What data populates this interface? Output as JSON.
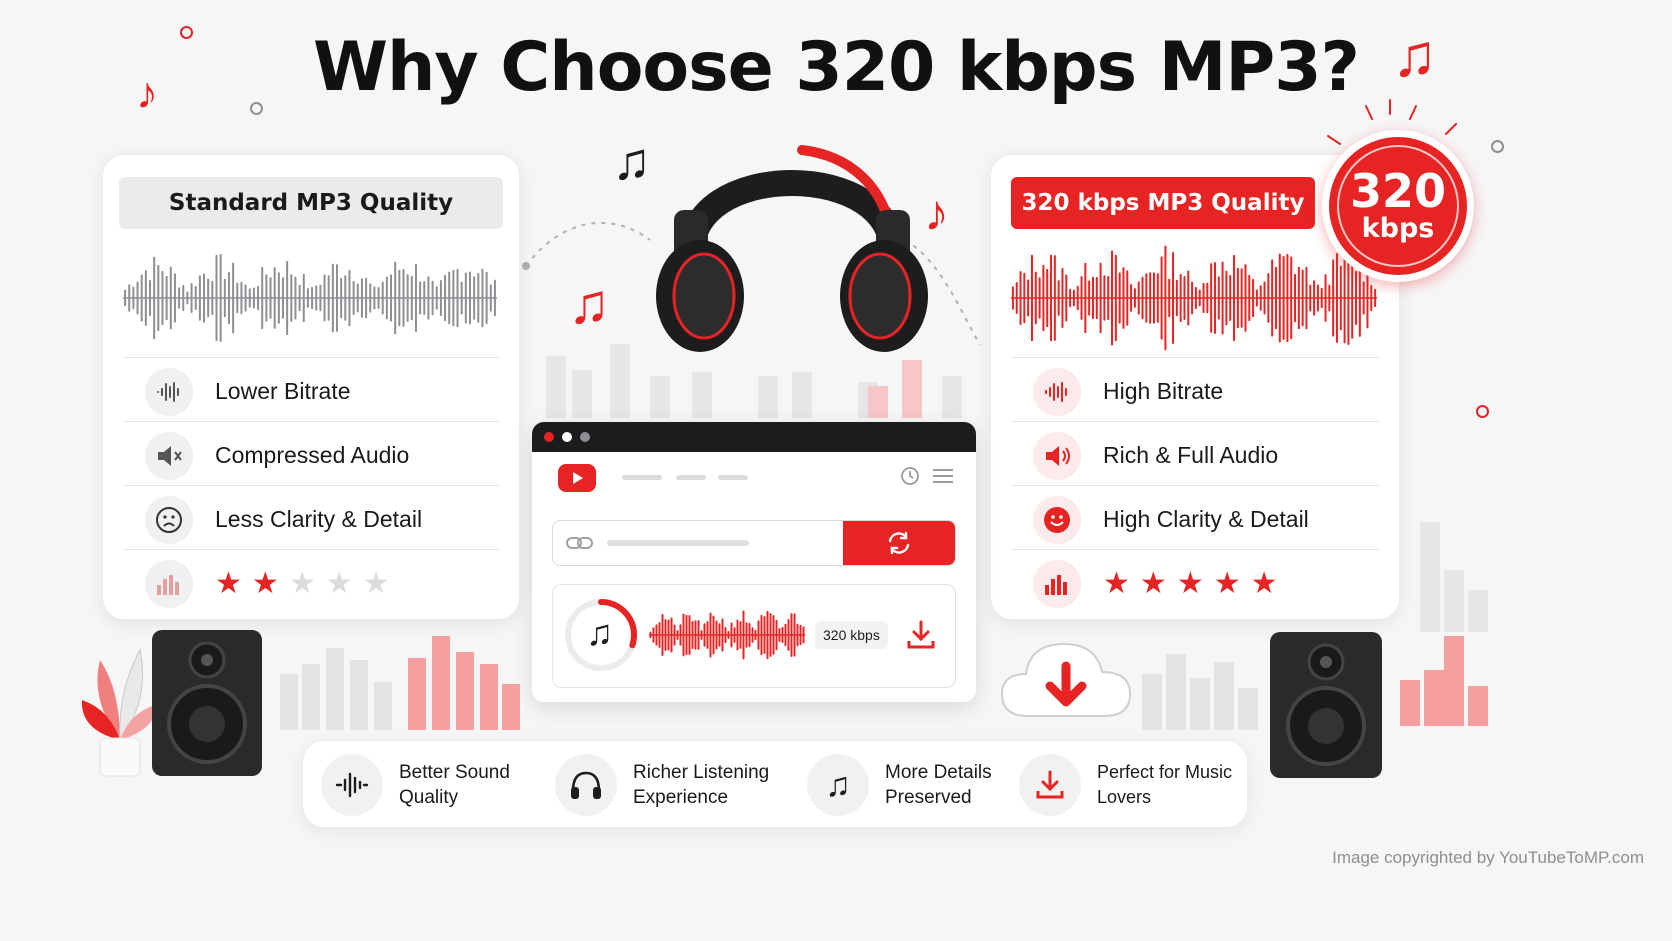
{
  "title": "Why Choose 320 kbps MP3?",
  "left_card": {
    "heading": "Standard MP3 Quality",
    "items": [
      {
        "label": "Lower Bitrate",
        "icon": "waveform-icon"
      },
      {
        "label": "Compressed Audio",
        "icon": "speaker-muted-icon"
      },
      {
        "label": "Less Clarity & Detail",
        "icon": "sad-face-icon"
      }
    ],
    "rating": 2,
    "rating_max": 5,
    "accent": "#8e8e93"
  },
  "right_card": {
    "heading": "320 kbps MP3 Quality",
    "items": [
      {
        "label": "High Bitrate",
        "icon": "waveform-icon"
      },
      {
        "label": "Rich & Full Audio",
        "icon": "speaker-loud-icon"
      },
      {
        "label": "High Clarity & Detail",
        "icon": "smiley-face-icon"
      }
    ],
    "rating": 5,
    "rating_max": 5,
    "accent": "#e62424"
  },
  "badge": {
    "number": "320",
    "unit": "kbps"
  },
  "converter": {
    "bitrate_label": "320 kbps",
    "progress": 0.3
  },
  "features": [
    {
      "line1": "Better Sound",
      "line2": "Quality",
      "icon": "waveform-icon"
    },
    {
      "line1": "Richer Listening",
      "line2": "Experience",
      "icon": "headphones-icon"
    },
    {
      "line1": "More Details",
      "line2": "Preserved",
      "icon": "music-note-icon"
    },
    {
      "line1": "Perfect for Music",
      "line2": "Lovers",
      "icon": "download-icon"
    }
  ],
  "copyright": "Image copyrighted by YouTubeToMP.com",
  "colors": {
    "brand_red": "#e62424",
    "neutral_gray": "#8e8e93",
    "dark": "#1d1d1f"
  }
}
